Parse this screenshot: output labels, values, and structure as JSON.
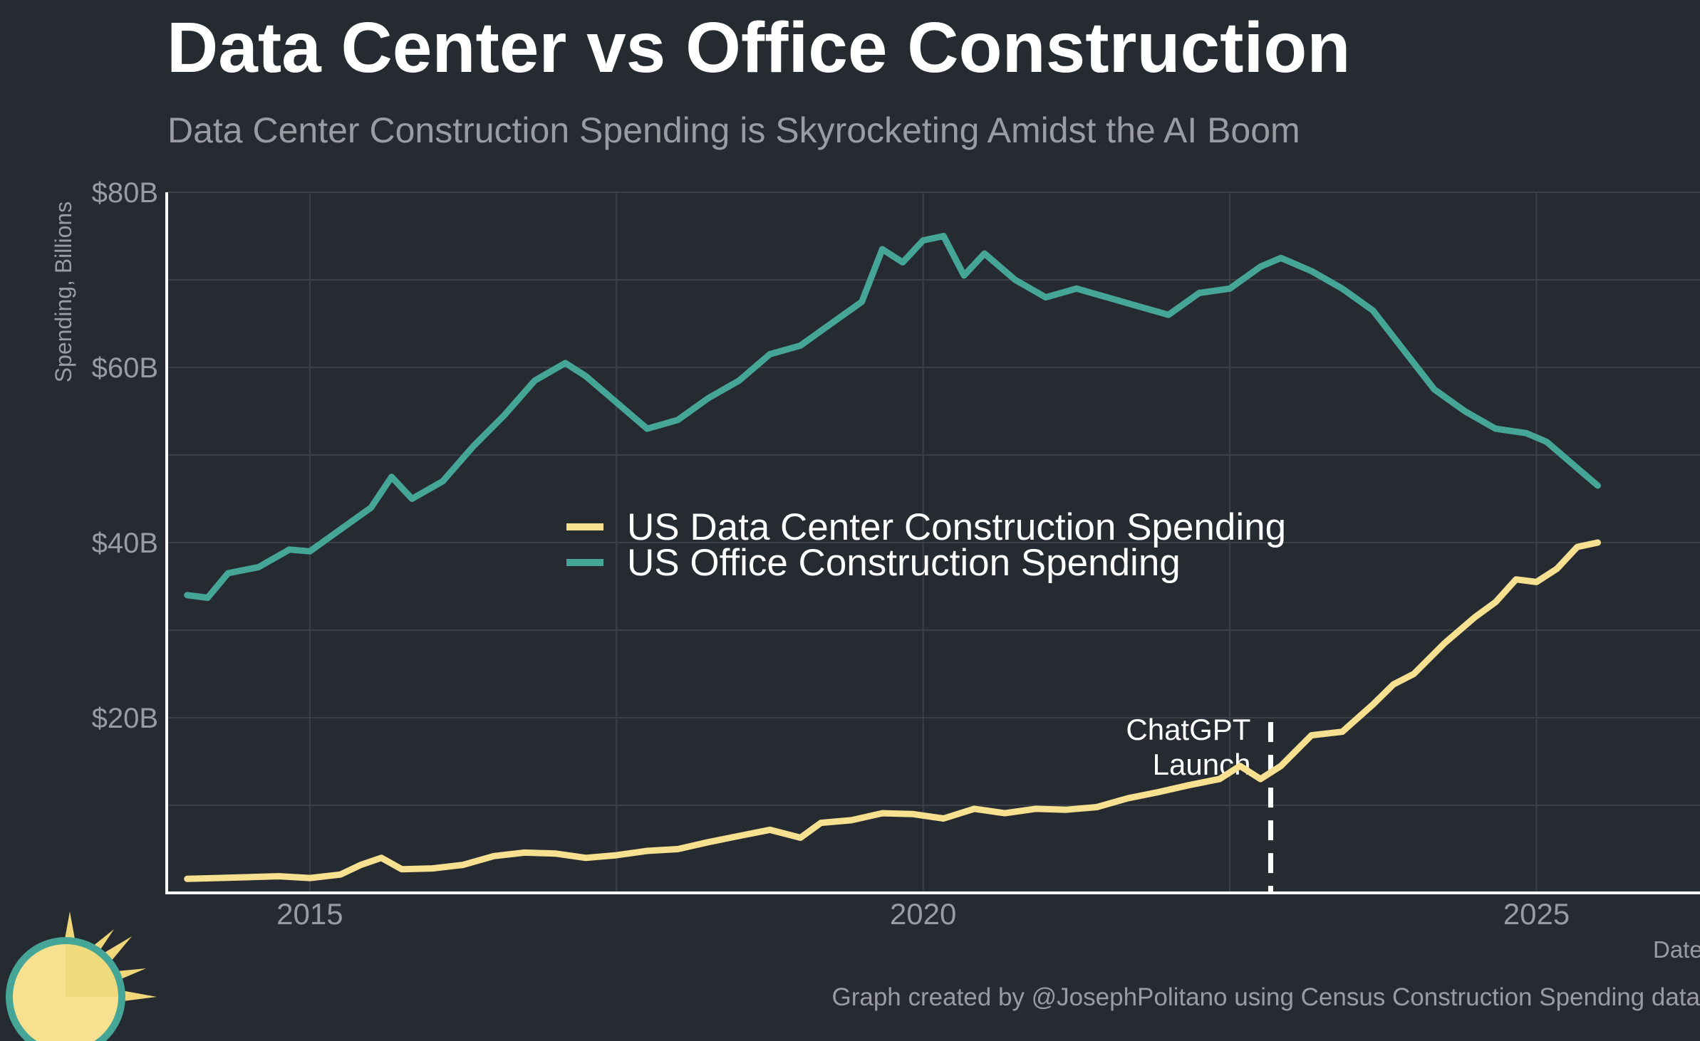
{
  "header": {
    "title": "Data Center vs Office Construction",
    "subtitle": "Data Center Construction Spending is Skyrocketing Amidst the AI Boom"
  },
  "footer": {
    "caption": "Graph created by @JosephPolitano using Census Construction Spending data"
  },
  "colors": {
    "data_center": "#f7e08f",
    "office": "#45a596",
    "background": "#262a31",
    "grid": "#3b3f47",
    "axis": "#ffffff",
    "muted_text": "#9a9ca1"
  },
  "logo": {
    "icon": "sun-logo-icon"
  },
  "chart_data": {
    "type": "line",
    "x_unit": "date (monthly)",
    "xlabel": "Date",
    "ylabel": "Spending, Billions",
    "xlim": [
      "2013-11",
      "2026-05"
    ],
    "ylim": [
      0,
      80
    ],
    "x_ticks": [
      {
        "date": "2015-01",
        "label": "2015"
      },
      {
        "date": "2020-01",
        "label": "2020"
      },
      {
        "date": "2025-01",
        "label": "2025"
      }
    ],
    "y_ticks": [
      {
        "value": 20,
        "label": "$20B"
      },
      {
        "value": 40,
        "label": "$40B"
      },
      {
        "value": 60,
        "label": "$60B"
      },
      {
        "value": 80,
        "label": "$80B"
      }
    ],
    "grid": true,
    "legend": {
      "position": "center"
    },
    "annotations": [
      {
        "date": "2022-11",
        "line1": "ChatGPT",
        "line2": "Launch",
        "style": "dashed-vertical"
      }
    ],
    "series": [
      {
        "name": "US Data Center Construction Spending",
        "color": "#f7e08f",
        "points": [
          [
            "2014-01",
            1.6
          ],
          [
            "2014-04",
            1.7
          ],
          [
            "2014-07",
            1.8
          ],
          [
            "2014-10",
            1.9
          ],
          [
            "2015-01",
            1.7
          ],
          [
            "2015-04",
            2.1
          ],
          [
            "2015-06",
            3.2
          ],
          [
            "2015-08",
            4.0
          ],
          [
            "2015-10",
            2.7
          ],
          [
            "2016-01",
            2.8
          ],
          [
            "2016-04",
            3.2
          ],
          [
            "2016-07",
            4.2
          ],
          [
            "2016-10",
            4.6
          ],
          [
            "2017-01",
            4.5
          ],
          [
            "2017-04",
            4.0
          ],
          [
            "2017-07",
            4.3
          ],
          [
            "2017-10",
            4.8
          ],
          [
            "2018-01",
            5.0
          ],
          [
            "2018-04",
            5.8
          ],
          [
            "2018-07",
            6.5
          ],
          [
            "2018-10",
            7.2
          ],
          [
            "2019-01",
            6.3
          ],
          [
            "2019-03",
            8.0
          ],
          [
            "2019-06",
            8.3
          ],
          [
            "2019-09",
            9.1
          ],
          [
            "2019-12",
            9.0
          ],
          [
            "2020-03",
            8.5
          ],
          [
            "2020-06",
            9.6
          ],
          [
            "2020-09",
            9.1
          ],
          [
            "2020-12",
            9.6
          ],
          [
            "2021-03",
            9.5
          ],
          [
            "2021-06",
            9.8
          ],
          [
            "2021-09",
            10.8
          ],
          [
            "2021-12",
            11.5
          ],
          [
            "2022-03",
            12.3
          ],
          [
            "2022-06",
            13.0
          ],
          [
            "2022-08",
            14.5
          ],
          [
            "2022-10",
            13.0
          ],
          [
            "2022-12",
            14.5
          ],
          [
            "2023-03",
            18.0
          ],
          [
            "2023-06",
            18.4
          ],
          [
            "2023-09",
            21.5
          ],
          [
            "2023-11",
            23.8
          ],
          [
            "2024-01",
            25.0
          ],
          [
            "2024-04",
            28.5
          ],
          [
            "2024-07",
            31.5
          ],
          [
            "2024-09",
            33.2
          ],
          [
            "2024-11",
            35.8
          ],
          [
            "2025-01",
            35.5
          ],
          [
            "2025-03",
            37.0
          ],
          [
            "2025-05",
            39.5
          ],
          [
            "2025-07",
            40.0
          ]
        ]
      },
      {
        "name": "US Office Construction Spending",
        "color": "#45a596",
        "points": [
          [
            "2014-01",
            34.0
          ],
          [
            "2014-03",
            33.7
          ],
          [
            "2014-05",
            36.5
          ],
          [
            "2014-08",
            37.2
          ],
          [
            "2014-11",
            39.2
          ],
          [
            "2015-01",
            39.0
          ],
          [
            "2015-04",
            41.5
          ],
          [
            "2015-07",
            44.0
          ],
          [
            "2015-09",
            47.5
          ],
          [
            "2015-11",
            45.0
          ],
          [
            "2016-02",
            47.0
          ],
          [
            "2016-05",
            51.0
          ],
          [
            "2016-08",
            54.5
          ],
          [
            "2016-11",
            58.5
          ],
          [
            "2017-02",
            60.5
          ],
          [
            "2017-04",
            59.0
          ],
          [
            "2017-07",
            56.0
          ],
          [
            "2017-10",
            53.0
          ],
          [
            "2018-01",
            54.0
          ],
          [
            "2018-04",
            56.5
          ],
          [
            "2018-07",
            58.5
          ],
          [
            "2018-10",
            61.5
          ],
          [
            "2019-01",
            62.5
          ],
          [
            "2019-04",
            65.0
          ],
          [
            "2019-07",
            67.5
          ],
          [
            "2019-09",
            73.5
          ],
          [
            "2019-11",
            72.0
          ],
          [
            "2020-01",
            74.5
          ],
          [
            "2020-03",
            75.0
          ],
          [
            "2020-05",
            70.5
          ],
          [
            "2020-07",
            73.0
          ],
          [
            "2020-10",
            70.0
          ],
          [
            "2021-01",
            68.0
          ],
          [
            "2021-04",
            69.0
          ],
          [
            "2021-07",
            68.0
          ],
          [
            "2021-10",
            67.0
          ],
          [
            "2022-01",
            66.0
          ],
          [
            "2022-04",
            68.5
          ],
          [
            "2022-07",
            69.0
          ],
          [
            "2022-10",
            71.5
          ],
          [
            "2022-12",
            72.5
          ],
          [
            "2023-03",
            71.0
          ],
          [
            "2023-06",
            69.0
          ],
          [
            "2023-09",
            66.5
          ],
          [
            "2023-12",
            62.0
          ],
          [
            "2024-03",
            57.5
          ],
          [
            "2024-06",
            55.0
          ],
          [
            "2024-09",
            53.0
          ],
          [
            "2024-12",
            52.5
          ],
          [
            "2025-02",
            51.5
          ],
          [
            "2025-05",
            48.5
          ],
          [
            "2025-07",
            46.5
          ]
        ]
      }
    ]
  }
}
